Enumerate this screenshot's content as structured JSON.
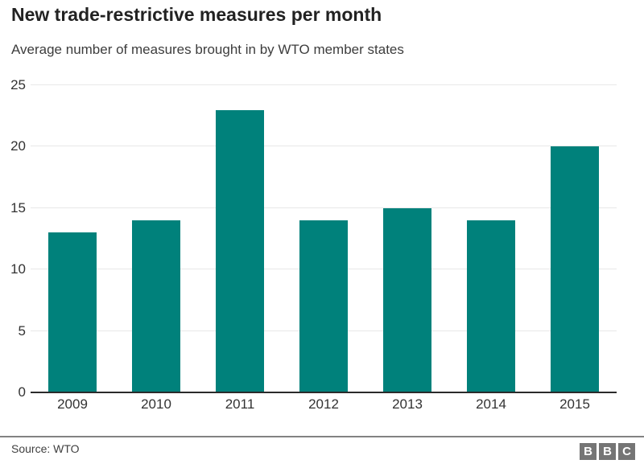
{
  "header": {
    "title": "New trade-restrictive measures per month",
    "subtitle": "Average number of measures brought in by WTO member states"
  },
  "chart_data": {
    "type": "bar",
    "title": "New trade-restrictive measures per month",
    "subtitle": "Average number of measures brought in by WTO member states",
    "categories": [
      "2009",
      "2010",
      "2011",
      "2012",
      "2013",
      "2014",
      "2015"
    ],
    "values": [
      13,
      14,
      23,
      14,
      15,
      14,
      20
    ],
    "xlabel": "",
    "ylabel": "",
    "ylim": [
      0,
      25
    ],
    "y_ticks": [
      0,
      5,
      10,
      15,
      20,
      25
    ],
    "grid": "horizontal-light-gray",
    "legend": "none",
    "bar_color": "#00817B"
  },
  "footer": {
    "source": "Source: WTO",
    "logo_letters": [
      "B",
      "B",
      "C"
    ]
  },
  "colors": {
    "bar": "#00817B",
    "title_text": "#222222",
    "subtitle_text": "#3d3d3d",
    "tick_text": "#333333",
    "gridline": "#e8e8e8",
    "axis_line": "#2b2b2b",
    "divider": "#828282",
    "logo_background": "#757575"
  }
}
